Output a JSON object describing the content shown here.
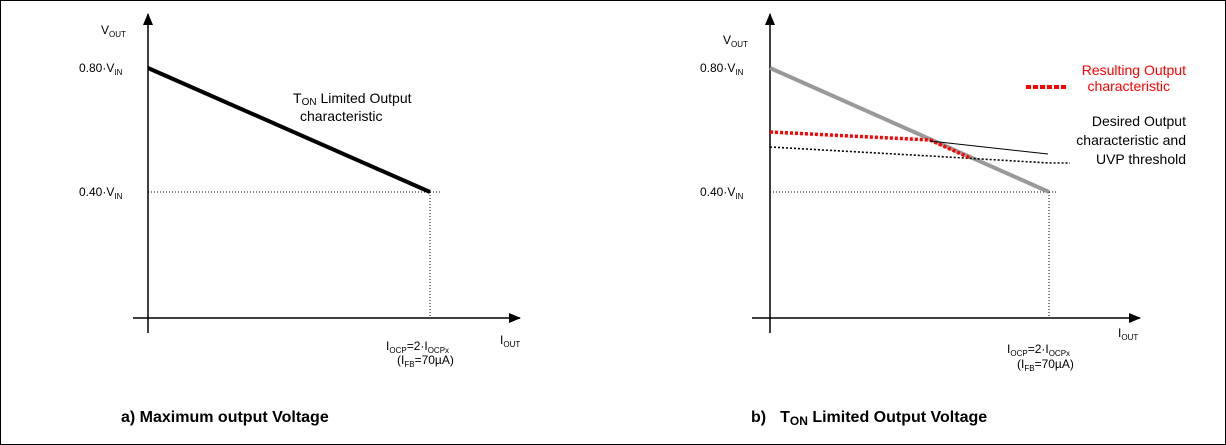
{
  "panel_a": {
    "y_axis_main": "V",
    "y_axis_sub": "OUT",
    "x_axis_main": "I",
    "x_axis_sub": "OUT",
    "y_tick_high_main": "0.80·V",
    "y_tick_high_sub": "IN",
    "y_tick_low_main": "0.40·V",
    "y_tick_low_sub": "IN",
    "x_tick_I1": "I",
    "x_tick_sub1": "OCP",
    "x_tick_mid": "=2·I",
    "x_tick_sub2": "OCPx",
    "x_tick2_a": "(I",
    "x_tick2_sub": "FB",
    "x_tick2_b": "=70µA)",
    "line_label_T": "T",
    "line_label_sub": "ON",
    "line_label_rest": " Limited Output",
    "line_label_line2": "characteristic",
    "caption": "a) Maximum output Voltage"
  },
  "panel_b": {
    "y_axis_main": "V",
    "y_axis_sub": "OUT",
    "x_axis_main": "I",
    "x_axis_sub": "OUT",
    "y_tick_high_main": "0.80·V",
    "y_tick_high_sub": "IN",
    "y_tick_low_main": "0.40·V",
    "y_tick_low_sub": "IN",
    "x_tick_I1": "I",
    "x_tick_sub1": "OCP",
    "x_tick_mid": "=2·I",
    "x_tick_sub2": "OCPx",
    "x_tick2_a": "(I",
    "x_tick2_sub": "FB",
    "x_tick2_b": "=70µA)",
    "resulting_line1": "Resulting Output",
    "resulting_line2": "characteristic",
    "desired_line1": "Desired Output",
    "desired_line2": "characteristic and",
    "desired_line3": "UVP threshold",
    "caption_prefix": "b)",
    "caption_T": "T",
    "caption_sub": "ON",
    "caption_rest": " Limited Output Voltage"
  },
  "colors": {
    "resulting": "#ff0000",
    "ton_line_b": "#999999",
    "axis": "#000000"
  }
}
